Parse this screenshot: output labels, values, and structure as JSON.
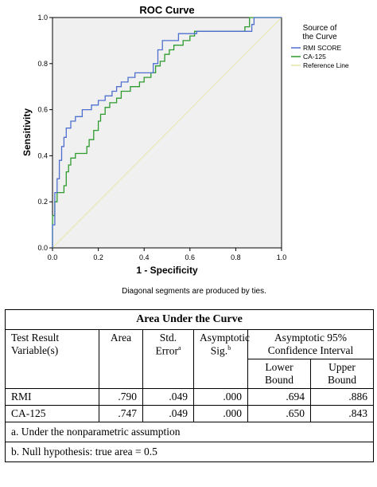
{
  "chart_data": {
    "type": "line",
    "title": "ROC Curve",
    "xlabel": "1 - Specificity",
    "ylabel": "Sensitivity",
    "xlim": [
      0,
      1
    ],
    "ylim": [
      0,
      1
    ],
    "xticks": [
      "0.0",
      "0.2",
      "0.4",
      "0.6",
      "0.8",
      "1.0"
    ],
    "yticks": [
      "0.0",
      "0.2",
      "0.4",
      "0.6",
      "0.8",
      "1.0"
    ],
    "grid": false,
    "background": "#f0f0f0",
    "legend": {
      "title": "Source of the Curve",
      "placement": "right",
      "entries": [
        "RMI SCORE",
        "CA-125",
        "Reference Line"
      ]
    },
    "series": [
      {
        "name": "RMI SCORE",
        "color": "#4f6fd0",
        "points": [
          [
            0,
            0
          ],
          [
            0,
            0.1
          ],
          [
            0.01,
            0.1
          ],
          [
            0.01,
            0.24
          ],
          [
            0.02,
            0.24
          ],
          [
            0.02,
            0.3
          ],
          [
            0.03,
            0.3
          ],
          [
            0.03,
            0.38
          ],
          [
            0.04,
            0.38
          ],
          [
            0.04,
            0.44
          ],
          [
            0.05,
            0.44
          ],
          [
            0.05,
            0.48
          ],
          [
            0.06,
            0.48
          ],
          [
            0.06,
            0.52
          ],
          [
            0.08,
            0.52
          ],
          [
            0.08,
            0.55
          ],
          [
            0.1,
            0.55
          ],
          [
            0.1,
            0.57
          ],
          [
            0.13,
            0.57
          ],
          [
            0.13,
            0.6
          ],
          [
            0.17,
            0.6
          ],
          [
            0.17,
            0.62
          ],
          [
            0.2,
            0.62
          ],
          [
            0.2,
            0.64
          ],
          [
            0.23,
            0.64
          ],
          [
            0.23,
            0.66
          ],
          [
            0.26,
            0.66
          ],
          [
            0.26,
            0.68
          ],
          [
            0.28,
            0.68
          ],
          [
            0.28,
            0.7
          ],
          [
            0.3,
            0.7
          ],
          [
            0.3,
            0.72
          ],
          [
            0.33,
            0.72
          ],
          [
            0.33,
            0.74
          ],
          [
            0.36,
            0.74
          ],
          [
            0.36,
            0.76
          ],
          [
            0.44,
            0.76
          ],
          [
            0.44,
            0.8
          ],
          [
            0.46,
            0.8
          ],
          [
            0.46,
            0.86
          ],
          [
            0.48,
            0.86
          ],
          [
            0.48,
            0.9
          ],
          [
            0.55,
            0.9
          ],
          [
            0.55,
            0.93
          ],
          [
            0.63,
            0.93
          ],
          [
            0.63,
            0.94
          ],
          [
            0.87,
            0.94
          ],
          [
            0.87,
            0.97
          ],
          [
            0.88,
            0.97
          ],
          [
            0.88,
            1.0
          ],
          [
            1.0,
            1.0
          ]
        ]
      },
      {
        "name": "CA-125",
        "color": "#2e9b2e",
        "points": [
          [
            0,
            0
          ],
          [
            0,
            0.14
          ],
          [
            0.01,
            0.14
          ],
          [
            0.01,
            0.2
          ],
          [
            0.02,
            0.2
          ],
          [
            0.02,
            0.24
          ],
          [
            0.05,
            0.24
          ],
          [
            0.05,
            0.27
          ],
          [
            0.06,
            0.27
          ],
          [
            0.06,
            0.33
          ],
          [
            0.07,
            0.33
          ],
          [
            0.07,
            0.36
          ],
          [
            0.08,
            0.36
          ],
          [
            0.08,
            0.39
          ],
          [
            0.1,
            0.39
          ],
          [
            0.1,
            0.41
          ],
          [
            0.15,
            0.41
          ],
          [
            0.15,
            0.44
          ],
          [
            0.16,
            0.44
          ],
          [
            0.16,
            0.47
          ],
          [
            0.18,
            0.47
          ],
          [
            0.18,
            0.51
          ],
          [
            0.2,
            0.51
          ],
          [
            0.2,
            0.55
          ],
          [
            0.21,
            0.55
          ],
          [
            0.21,
            0.58
          ],
          [
            0.23,
            0.58
          ],
          [
            0.23,
            0.61
          ],
          [
            0.25,
            0.61
          ],
          [
            0.25,
            0.63
          ],
          [
            0.28,
            0.63
          ],
          [
            0.28,
            0.65
          ],
          [
            0.3,
            0.65
          ],
          [
            0.3,
            0.68
          ],
          [
            0.34,
            0.68
          ],
          [
            0.34,
            0.7
          ],
          [
            0.38,
            0.7
          ],
          [
            0.38,
            0.72
          ],
          [
            0.4,
            0.72
          ],
          [
            0.4,
            0.74
          ],
          [
            0.43,
            0.74
          ],
          [
            0.43,
            0.76
          ],
          [
            0.45,
            0.76
          ],
          [
            0.45,
            0.79
          ],
          [
            0.47,
            0.79
          ],
          [
            0.47,
            0.81
          ],
          [
            0.49,
            0.81
          ],
          [
            0.49,
            0.84
          ],
          [
            0.51,
            0.84
          ],
          [
            0.51,
            0.86
          ],
          [
            0.53,
            0.86
          ],
          [
            0.53,
            0.88
          ],
          [
            0.57,
            0.88
          ],
          [
            0.57,
            0.9
          ],
          [
            0.6,
            0.9
          ],
          [
            0.6,
            0.92
          ],
          [
            0.62,
            0.92
          ],
          [
            0.62,
            0.94
          ],
          [
            0.84,
            0.94
          ],
          [
            0.84,
            0.96
          ],
          [
            0.86,
            0.96
          ],
          [
            0.86,
            1.0
          ],
          [
            1.0,
            1.0
          ]
        ]
      },
      {
        "name": "Reference Line",
        "color": "#e8e6a8",
        "points": [
          [
            0,
            0
          ],
          [
            1,
            1
          ]
        ]
      }
    ],
    "annotation": "Diagonal segments are produced by ties."
  },
  "table": {
    "title": "Area Under the Curve",
    "headers": {
      "variable": "Test Result Variable(s)",
      "area": "Area",
      "std_error": "Std. Error",
      "std_error_sup": "a",
      "asymp_sig": "Asymptotic Sig.",
      "asymp_sig_sup": "b",
      "ci": "Asymptotic 95% Confidence Interval",
      "lower": "Lower Bound",
      "upper": "Upper Bound"
    },
    "rows": [
      {
        "variable": "RMI",
        "area": ".790",
        "std_error": ".049",
        "asymp_sig": ".000",
        "lower": ".694",
        "upper": ".886"
      },
      {
        "variable": "CA-125",
        "area": ".747",
        "std_error": ".049",
        "asymp_sig": ".000",
        "lower": ".650",
        "upper": ".843"
      }
    ],
    "footnotes": [
      "a. Under the nonparametric assumption",
      "b. Null hypothesis: true area = 0.5"
    ]
  }
}
